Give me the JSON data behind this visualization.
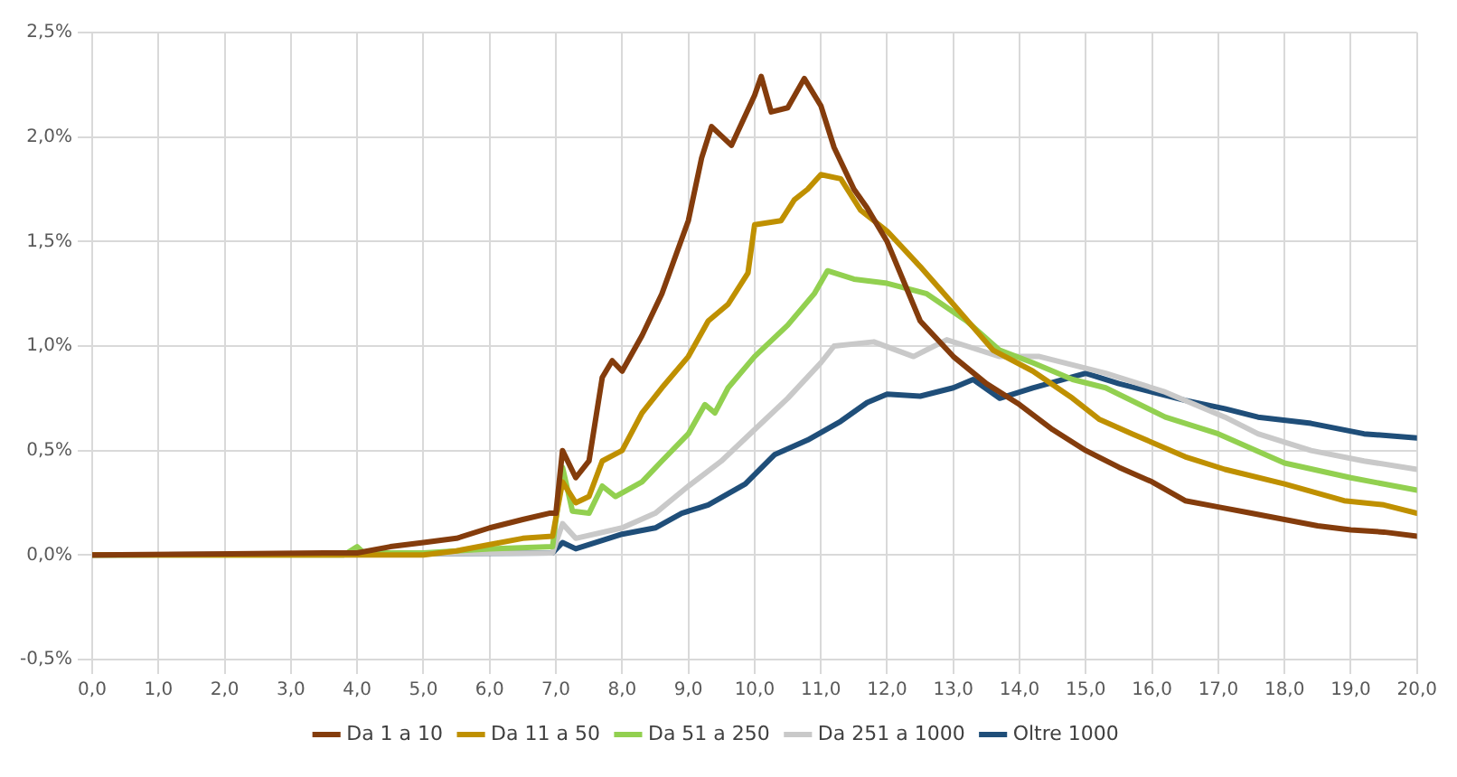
{
  "chart_data": {
    "type": "line",
    "xlim": [
      0,
      20
    ],
    "xticks": [
      {
        "value": 0,
        "label": "0,0"
      },
      {
        "value": 1,
        "label": "1,0"
      },
      {
        "value": 2,
        "label": "2,0"
      },
      {
        "value": 3,
        "label": "3,0"
      },
      {
        "value": 4,
        "label": "4,0"
      },
      {
        "value": 5,
        "label": "5,0"
      },
      {
        "value": 6,
        "label": "6,0"
      },
      {
        "value": 7,
        "label": "7,0"
      },
      {
        "value": 8,
        "label": "8,0"
      },
      {
        "value": 9,
        "label": "9,0"
      },
      {
        "value": 10,
        "label": "10,0"
      },
      {
        "value": 11,
        "label": "11,0"
      },
      {
        "value": 12,
        "label": "12,0"
      },
      {
        "value": 13,
        "label": "13,0"
      },
      {
        "value": 14,
        "label": "14,0"
      },
      {
        "value": 15,
        "label": "15,0"
      },
      {
        "value": 16,
        "label": "16,0"
      },
      {
        "value": 17,
        "label": "17,0"
      },
      {
        "value": 18,
        "label": "18,0"
      },
      {
        "value": 19,
        "label": "19,0"
      },
      {
        "value": 20,
        "label": "20,0"
      }
    ],
    "ylim": [
      -0.5,
      2.5
    ],
    "yticks": [
      {
        "value": -0.5,
        "label": "-0,5%"
      },
      {
        "value": 0,
        "label": "0,0%"
      },
      {
        "value": 0.5,
        "label": "0,5%"
      },
      {
        "value": 1,
        "label": "1,0%"
      },
      {
        "value": 1.5,
        "label": "1,5%"
      },
      {
        "value": 2,
        "label": "2,0%"
      },
      {
        "value": 2.5,
        "label": "2,5%"
      }
    ],
    "grid": true,
    "legend": "bottom",
    "marker": "none",
    "line_style": "solid",
    "series": [
      {
        "name": "Da 1 a 10",
        "color": "#843c0c",
        "x": [
          0,
          3.5,
          4.0,
          4.5,
          5.0,
          5.5,
          6.0,
          6.5,
          6.9,
          7.0,
          7.1,
          7.3,
          7.5,
          7.7,
          7.85,
          8.0,
          8.3,
          8.6,
          9.0,
          9.2,
          9.35,
          9.65,
          10.0,
          10.1,
          10.25,
          10.5,
          10.75,
          11.0,
          11.2,
          11.5,
          11.7,
          12.0,
          12.5,
          13.0,
          13.5,
          14.0,
          14.5,
          15.0,
          15.5,
          16.0,
          16.5,
          17.0,
          17.5,
          18.0,
          18.5,
          19.0,
          19.5,
          20.0
        ],
        "values": [
          0,
          0.01,
          0.01,
          0.04,
          0.06,
          0.08,
          0.13,
          0.17,
          0.2,
          0.2,
          0.5,
          0.37,
          0.45,
          0.85,
          0.93,
          0.88,
          1.05,
          1.25,
          1.6,
          1.9,
          2.05,
          1.96,
          2.2,
          2.29,
          2.12,
          2.14,
          2.28,
          2.15,
          1.95,
          1.75,
          1.66,
          1.5,
          1.12,
          0.95,
          0.82,
          0.72,
          0.6,
          0.5,
          0.42,
          0.35,
          0.26,
          0.23,
          0.2,
          0.17,
          0.14,
          0.12,
          0.11,
          0.09
        ]
      },
      {
        "name": "Da 11 a 50",
        "color": "#bf9000",
        "x": [
          0,
          5.0,
          5.5,
          6.0,
          6.5,
          6.95,
          7.1,
          7.3,
          7.5,
          7.7,
          8.0,
          8.3,
          8.6,
          9.0,
          9.3,
          9.6,
          9.9,
          10.0,
          10.4,
          10.6,
          10.8,
          11.0,
          11.3,
          11.6,
          12.0,
          12.5,
          13.0,
          13.6,
          14.2,
          14.8,
          15.2,
          15.7,
          16.5,
          17.1,
          18.0,
          18.9,
          19.5,
          20.0
        ],
        "values": [
          0,
          0,
          0.02,
          0.05,
          0.08,
          0.09,
          0.35,
          0.25,
          0.28,
          0.45,
          0.5,
          0.68,
          0.8,
          0.95,
          1.12,
          1.2,
          1.35,
          1.58,
          1.6,
          1.7,
          1.75,
          1.82,
          1.8,
          1.65,
          1.55,
          1.38,
          1.2,
          0.98,
          0.88,
          0.75,
          0.65,
          0.58,
          0.47,
          0.41,
          0.34,
          0.26,
          0.24,
          0.2
        ]
      },
      {
        "name": "Da 51 a 250",
        "color": "#92d050",
        "x": [
          0,
          3.8,
          4.0,
          4.1,
          5.0,
          6.0,
          6.95,
          7.1,
          7.25,
          7.5,
          7.7,
          7.9,
          8.3,
          8.6,
          9.0,
          9.25,
          9.4,
          9.6,
          10.0,
          10.5,
          10.9,
          11.1,
          11.5,
          12.0,
          12.6,
          13.2,
          13.7,
          14.2,
          14.8,
          15.3,
          16.2,
          17.0,
          18.0,
          19.0,
          20.0
        ],
        "values": [
          0,
          0,
          0.04,
          0.01,
          0.01,
          0.03,
          0.04,
          0.42,
          0.21,
          0.2,
          0.33,
          0.28,
          0.35,
          0.45,
          0.58,
          0.72,
          0.68,
          0.8,
          0.95,
          1.1,
          1.25,
          1.36,
          1.32,
          1.3,
          1.25,
          1.12,
          0.98,
          0.92,
          0.84,
          0.8,
          0.66,
          0.58,
          0.44,
          0.37,
          0.31
        ]
      },
      {
        "name": "Da 251 a 1000",
        "color": "#c9c9c9",
        "x": [
          0,
          6.95,
          7.1,
          7.3,
          8.0,
          8.5,
          9.0,
          9.5,
          10.0,
          10.5,
          11.0,
          11.2,
          11.8,
          12.4,
          12.9,
          13.2,
          13.7,
          14.3,
          15.3,
          16.2,
          17.1,
          17.6,
          18.4,
          19.2,
          20.0
        ],
        "values": [
          0,
          0.01,
          0.15,
          0.08,
          0.13,
          0.2,
          0.33,
          0.45,
          0.6,
          0.75,
          0.92,
          1.0,
          1.02,
          0.95,
          1.03,
          1.0,
          0.95,
          0.95,
          0.87,
          0.78,
          0.66,
          0.58,
          0.5,
          0.45,
          0.41
        ]
      },
      {
        "name": "Oltre 1000",
        "color": "#1f4e79",
        "x": [
          0,
          6.95,
          7.1,
          7.3,
          7.7,
          8.0,
          8.5,
          8.9,
          9.3,
          9.86,
          10.3,
          10.8,
          11.3,
          11.7,
          12.0,
          12.5,
          13.0,
          13.3,
          13.7,
          14.2,
          15.0,
          15.5,
          16.0,
          16.5,
          17.1,
          17.6,
          18.4,
          19.2,
          20.0
        ],
        "values": [
          0,
          0.01,
          0.06,
          0.03,
          0.07,
          0.1,
          0.13,
          0.2,
          0.24,
          0.34,
          0.48,
          0.55,
          0.64,
          0.73,
          0.77,
          0.76,
          0.8,
          0.84,
          0.75,
          0.8,
          0.87,
          0.82,
          0.78,
          0.74,
          0.7,
          0.66,
          0.63,
          0.58,
          0.56
        ]
      }
    ]
  }
}
